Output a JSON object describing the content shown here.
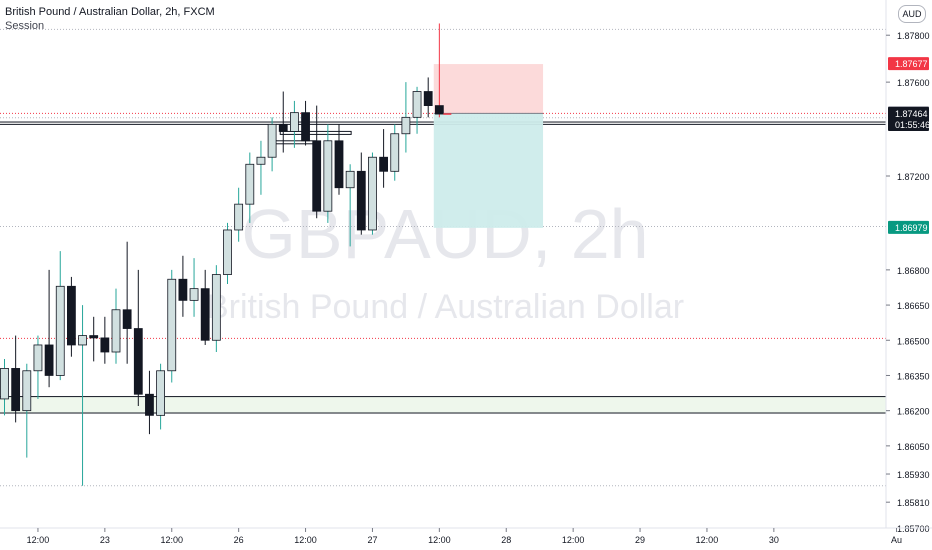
{
  "legend": {
    "title": "British Pound / Australian Dollar, 2h, FXCM",
    "indicator": "Session"
  },
  "watermark": {
    "symbol": "GBPAUD, 2h",
    "description": "British Pound / Australian Dollar"
  },
  "currency_button": "AUD",
  "price_axis": {
    "ticks": [
      {
        "label": "1.87800",
        "value": 1.878
      },
      {
        "label": "1.87600",
        "value": 1.876
      },
      {
        "label": "1.87200",
        "value": 1.872
      },
      {
        "label": "1.86800",
        "value": 1.868
      },
      {
        "label": "1.86650",
        "value": 1.8665
      },
      {
        "label": "1.86500",
        "value": 1.865
      },
      {
        "label": "1.86350",
        "value": 1.8635
      },
      {
        "label": "1.86200",
        "value": 1.862
      },
      {
        "label": "1.86050",
        "value": 1.8605
      },
      {
        "label": "1.85930",
        "value": 1.8593
      },
      {
        "label": "1.85810",
        "value": 1.8581
      },
      {
        "label": "1.85700",
        "value": 1.857
      }
    ],
    "badges": [
      {
        "label": "1.87677",
        "value": 1.87677,
        "color": "#f23645",
        "text_color": "#ffffff"
      },
      {
        "label": "1.87467",
        "value": 1.87467,
        "color": "#787b86",
        "text_color": "#ffffff"
      },
      {
        "label": "1.87464",
        "value": 1.87464,
        "color": "#131722",
        "text_color": "#ffffff",
        "countdown": "01:55:46"
      },
      {
        "label": "1.86979",
        "value": 1.86979,
        "color": "#089981",
        "text_color": "#ffffff"
      }
    ]
  },
  "time_axis": {
    "labels": [
      {
        "label": "12:00",
        "bar": 3
      },
      {
        "label": "23",
        "bar": 9
      },
      {
        "label": "12:00",
        "bar": 15
      },
      {
        "label": "26",
        "bar": 21
      },
      {
        "label": "12:00",
        "bar": 27
      },
      {
        "label": "27",
        "bar": 33
      },
      {
        "label": "12:00",
        "bar": 39
      },
      {
        "label": "28",
        "bar": 45
      },
      {
        "label": "12:00",
        "bar": 51
      },
      {
        "label": "29",
        "bar": 57
      },
      {
        "label": "12:00",
        "bar": 63
      },
      {
        "label": "30",
        "bar": 69
      },
      {
        "label": "Au",
        "bar": 80
      }
    ]
  },
  "horizontal_lines": [
    {
      "value": 1.87467,
      "color": "#f23645",
      "style": "dotted"
    },
    {
      "value": 1.86508,
      "color": "#f23645",
      "style": "dotted"
    },
    {
      "value": 1.87825,
      "color": "#b2b5be",
      "style": "dotted"
    },
    {
      "value": 1.87448,
      "color": "#b2b5be",
      "style": "dotted"
    },
    {
      "value": 1.86985,
      "color": "#b2b5be",
      "style": "dotted"
    },
    {
      "value": 1.8588,
      "color": "#b2b5be",
      "style": "dotted"
    }
  ],
  "zones": [
    {
      "from_bar": -1,
      "to_bar": 80,
      "top": 1.8743,
      "bottom": 1.8742,
      "fill": "#ffffff",
      "stroke": "#131722"
    },
    {
      "from_bar": -1,
      "to_bar": 80,
      "top": 1.8626,
      "bottom": 1.8619,
      "fill": "#eef7ec",
      "stroke": "#131722"
    }
  ],
  "short_position": {
    "from_bar": 38.5,
    "to_bar": 48.3,
    "stop": 1.87677,
    "entry": 1.87467,
    "target": 1.86979,
    "stop_fill": "#fcd3d3",
    "target_fill": "#cdeceb"
  },
  "colors": {
    "up_body": "#d1e0e0",
    "down_body": "#131722",
    "wick": "#131722",
    "up_wick": "#26a69a",
    "accent_red": "#f23645",
    "accent_teal": "#089981"
  },
  "chart_data": {
    "type": "candlestick",
    "symbol": "GBPAUD",
    "interval": "2h",
    "ylim": [
      1.857,
      1.8795
    ],
    "candles": [
      {
        "o": 1.8625,
        "h": 1.8642,
        "l": 1.8618,
        "c": 1.8638
      },
      {
        "o": 1.8638,
        "h": 1.8652,
        "l": 1.8615,
        "c": 1.862
      },
      {
        "o": 1.862,
        "h": 1.864,
        "l": 1.86,
        "c": 1.8637
      },
      {
        "o": 1.8637,
        "h": 1.8652,
        "l": 1.8625,
        "c": 1.8648
      },
      {
        "o": 1.8648,
        "h": 1.868,
        "l": 1.863,
        "c": 1.8635
      },
      {
        "o": 1.8635,
        "h": 1.8688,
        "l": 1.8633,
        "c": 1.8673
      },
      {
        "o": 1.8673,
        "h": 1.8677,
        "l": 1.8643,
        "c": 1.8648
      },
      {
        "o": 1.8648,
        "h": 1.8665,
        "l": 1.8588,
        "c": 1.8652
      },
      {
        "o": 1.8652,
        "h": 1.866,
        "l": 1.8641,
        "c": 1.8651
      },
      {
        "o": 1.8651,
        "h": 1.866,
        "l": 1.864,
        "c": 1.8645
      },
      {
        "o": 1.8645,
        "h": 1.8672,
        "l": 1.864,
        "c": 1.8663
      },
      {
        "o": 1.8663,
        "h": 1.8692,
        "l": 1.864,
        "c": 1.8655
      },
      {
        "o": 1.8655,
        "h": 1.868,
        "l": 1.8622,
        "c": 1.8627
      },
      {
        "o": 1.8627,
        "h": 1.8637,
        "l": 1.861,
        "c": 1.8618
      },
      {
        "o": 1.8618,
        "h": 1.864,
        "l": 1.8612,
        "c": 1.8637
      },
      {
        "o": 1.8637,
        "h": 1.868,
        "l": 1.8632,
        "c": 1.8676
      },
      {
        "o": 1.8676,
        "h": 1.8686,
        "l": 1.866,
        "c": 1.8667
      },
      {
        "o": 1.8667,
        "h": 1.8685,
        "l": 1.866,
        "c": 1.8672
      },
      {
        "o": 1.8672,
        "h": 1.868,
        "l": 1.8648,
        "c": 1.865
      },
      {
        "o": 1.865,
        "h": 1.8682,
        "l": 1.8645,
        "c": 1.8678
      },
      {
        "o": 1.8678,
        "h": 1.87,
        "l": 1.8674,
        "c": 1.8697
      },
      {
        "o": 1.8697,
        "h": 1.8715,
        "l": 1.8692,
        "c": 1.8708
      },
      {
        "o": 1.8708,
        "h": 1.873,
        "l": 1.87,
        "c": 1.8725
      },
      {
        "o": 1.8725,
        "h": 1.8735,
        "l": 1.8712,
        "c": 1.8728
      },
      {
        "o": 1.8728,
        "h": 1.8745,
        "l": 1.8722,
        "c": 1.8742
      },
      {
        "o": 1.8742,
        "h": 1.8756,
        "l": 1.873,
        "c": 1.8739
      },
      {
        "o": 1.8739,
        "h": 1.8752,
        "l": 1.8732,
        "c": 1.8747
      },
      {
        "o": 1.8747,
        "h": 1.8752,
        "l": 1.8733,
        "c": 1.8735
      },
      {
        "o": 1.8735,
        "h": 1.875,
        "l": 1.8702,
        "c": 1.8705
      },
      {
        "o": 1.8705,
        "h": 1.8742,
        "l": 1.87,
        "c": 1.8735
      },
      {
        "o": 1.8735,
        "h": 1.8742,
        "l": 1.8712,
        "c": 1.8715
      },
      {
        "o": 1.8715,
        "h": 1.8725,
        "l": 1.869,
        "c": 1.8722
      },
      {
        "o": 1.8722,
        "h": 1.873,
        "l": 1.8695,
        "c": 1.8697
      },
      {
        "o": 1.8697,
        "h": 1.873,
        "l": 1.8695,
        "c": 1.8728
      },
      {
        "o": 1.8728,
        "h": 1.874,
        "l": 1.8715,
        "c": 1.8722
      },
      {
        "o": 1.8722,
        "h": 1.8742,
        "l": 1.8718,
        "c": 1.8738
      },
      {
        "o": 1.8738,
        "h": 1.876,
        "l": 1.873,
        "c": 1.8745
      },
      {
        "o": 1.8745,
        "h": 1.8758,
        "l": 1.8738,
        "c": 1.8756
      },
      {
        "o": 1.8756,
        "h": 1.8762,
        "l": 1.8745,
        "c": 1.875
      },
      {
        "o": 1.875,
        "h": 1.8785,
        "l": 1.8745,
        "c": 1.87464
      }
    ]
  }
}
